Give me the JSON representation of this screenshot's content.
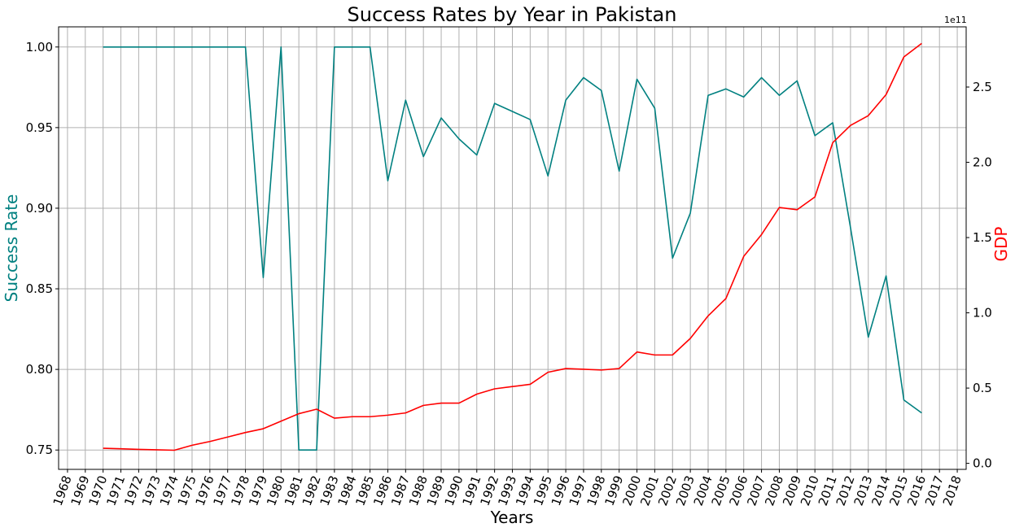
{
  "chart_data": {
    "type": "line",
    "title": "Success Rates by Year in Pakistan",
    "xlabel": "Years",
    "ylabel_left": "Success Rate",
    "ylabel_right": "GDP",
    "right_axis_offset_label": "1e11",
    "xlim": [
      1967.5,
      2018.5
    ],
    "ylim_left": [
      0.738,
      1.0125
    ],
    "ylim_right": [
      -0.04,
      2.9
    ],
    "x_ticks": [
      1968,
      1969,
      1970,
      1971,
      1972,
      1973,
      1974,
      1975,
      1976,
      1977,
      1978,
      1979,
      1980,
      1981,
      1982,
      1983,
      1984,
      1985,
      1986,
      1987,
      1988,
      1989,
      1990,
      1991,
      1992,
      1993,
      1994,
      1995,
      1996,
      1997,
      1998,
      1999,
      2000,
      2001,
      2002,
      2003,
      2004,
      2005,
      2006,
      2007,
      2008,
      2009,
      2010,
      2011,
      2012,
      2013,
      2014,
      2015,
      2016,
      2017,
      2018
    ],
    "y_ticks_left": [
      "0.75",
      "0.80",
      "0.85",
      "0.90",
      "0.95",
      "1.00"
    ],
    "y_ticks_right": [
      "0.0",
      "0.5",
      "1.0",
      "1.5",
      "2.0",
      "2.5"
    ],
    "grid": true,
    "colors": {
      "success": "#008080",
      "gdp": "#ff0000"
    },
    "series": [
      {
        "key": "success",
        "axis": "left",
        "x": [
          1970,
          1971,
          1972,
          1973,
          1974,
          1975,
          1976,
          1977,
          1978,
          1979,
          1980,
          1981,
          1982,
          1983,
          1984,
          1985,
          1986,
          1987,
          1988,
          1989,
          1990,
          1991,
          1992,
          1993,
          1994,
          1995,
          1996,
          1997,
          1998,
          1999,
          2000,
          2001,
          2002,
          2003,
          2004,
          2005,
          2006,
          2007,
          2008,
          2009,
          2010,
          2011,
          2012,
          2013,
          2014,
          2015,
          2016
        ],
        "values": [
          1.0,
          1.0,
          1.0,
          1.0,
          1.0,
          1.0,
          1.0,
          1.0,
          1.0,
          0.857,
          1.0,
          0.75,
          0.75,
          1.0,
          1.0,
          1.0,
          0.917,
          0.967,
          0.932,
          0.956,
          0.943,
          0.933,
          0.965,
          0.96,
          0.955,
          0.92,
          0.967,
          0.981,
          0.973,
          0.923,
          0.98,
          0.962,
          0.869,
          0.897,
          0.97,
          0.974,
          0.969,
          0.981,
          0.97,
          0.979,
          0.945,
          0.953,
          0.888,
          0.82,
          0.858,
          0.781,
          0.773
        ]
      },
      {
        "key": "gdp",
        "axis": "right",
        "x": [
          1970,
          1971,
          1972,
          1973,
          1974,
          1975,
          1976,
          1977,
          1978,
          1979,
          1980,
          1981,
          1982,
          1983,
          1984,
          1985,
          1986,
          1987,
          1988,
          1989,
          1990,
          1991,
          1992,
          1993,
          1994,
          1995,
          1996,
          1997,
          1998,
          1999,
          2000,
          2001,
          2002,
          2003,
          2004,
          2005,
          2006,
          2007,
          2008,
          2009,
          2010,
          2011,
          2012,
          2013,
          2014,
          2015,
          2016
        ],
        "values": [
          0.1,
          0.097,
          0.093,
          0.09,
          0.087,
          0.12,
          0.145,
          0.175,
          0.205,
          0.23,
          0.28,
          0.33,
          0.36,
          0.3,
          0.31,
          0.31,
          0.32,
          0.335,
          0.385,
          0.4,
          0.4,
          0.46,
          0.495,
          0.51,
          0.525,
          0.605,
          0.63,
          0.625,
          0.62,
          0.63,
          0.74,
          0.72,
          0.72,
          0.83,
          0.98,
          1.095,
          1.375,
          1.52,
          1.7,
          1.685,
          1.77,
          2.13,
          2.245,
          2.31,
          2.45,
          2.7,
          2.79
        ]
      }
    ]
  }
}
